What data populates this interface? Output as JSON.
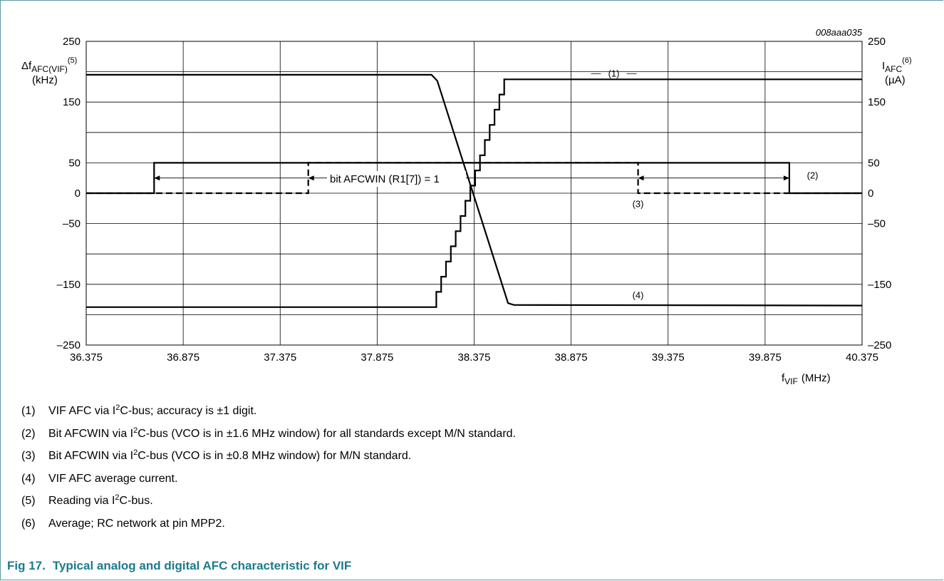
{
  "chart_data": {
    "type": "line",
    "id_label": "008aaa035",
    "x_ticks": [
      "36.375",
      "36.875",
      "37.375",
      "37.875",
      "38.375",
      "38.875",
      "39.375",
      "39.875",
      "40.375"
    ],
    "xlim": [
      36.375,
      40.375
    ],
    "y_ticks_left": [
      "250",
      "150",
      "50",
      "0",
      "–50",
      "–150",
      "–250"
    ],
    "y_tick_values_left": [
      250,
      150,
      50,
      0,
      -50,
      -150,
      -250
    ],
    "y_ticks_right": [
      "250",
      "150",
      "50",
      "0",
      "–50",
      "–150",
      "–250"
    ],
    "ylim": [
      -250,
      250
    ],
    "grid": true,
    "left_axis_label": {
      "symbol": "Δf",
      "subscript": "AFC(VIF)",
      "sup": "(5)",
      "unit": "(kHz)"
    },
    "right_axis_label": {
      "symbol": "I",
      "subscript": "AFC",
      "sup": "(6)",
      "unit": "(µA)"
    },
    "x_axis_label": {
      "symbol": "f",
      "subscript": "VIF",
      "unit": "(MHz)"
    },
    "annotation": "bit AFCWIN (R1[7]) = 1",
    "series": [
      {
        "label": "(1)",
        "style": "solid-staircase",
        "x": [
          36.375,
          38.18,
          38.18,
          38.205,
          38.205,
          38.23,
          38.23,
          38.255,
          38.255,
          38.28,
          38.28,
          38.305,
          38.305,
          38.33,
          38.33,
          38.355,
          38.355,
          38.38,
          38.38,
          38.405,
          38.405,
          38.43,
          38.43,
          38.455,
          38.455,
          38.48,
          38.48,
          38.505,
          38.505,
          38.53,
          38.53,
          38.555,
          38.555,
          38.58,
          38.58,
          40.375
        ],
        "y": [
          -187.5,
          -187.5,
          -162.5,
          -162.5,
          -137.5,
          -137.5,
          -112.5,
          -112.5,
          -87.5,
          -87.5,
          -62.5,
          -62.5,
          -37.5,
          -37.5,
          -12.5,
          -12.5,
          12.5,
          12.5,
          37.5,
          37.5,
          62.5,
          62.5,
          87.5,
          87.5,
          112.5,
          112.5,
          137.5,
          137.5,
          162.5,
          162.5,
          187.5,
          187.5,
          187.5,
          187.5,
          187.5,
          187.5
        ]
      },
      {
        "label": "(2)",
        "style": "solid",
        "x": [
          36.375,
          36.725,
          36.725,
          40.0,
          40.0,
          40.375
        ],
        "y": [
          0,
          0,
          50,
          50,
          0,
          0
        ]
      },
      {
        "label": "(3)",
        "style": "dashed",
        "x": [
          36.375,
          37.52,
          37.52,
          39.22,
          39.22,
          40.375
        ],
        "y": [
          0,
          0,
          50,
          50,
          0,
          0
        ]
      },
      {
        "label": "(4)",
        "style": "solid",
        "x": [
          36.375,
          38.155,
          38.185,
          38.55,
          38.58,
          40.375
        ],
        "y": [
          195,
          195,
          185,
          -181,
          -184,
          -185
        ]
      }
    ],
    "series_label_positions": [
      {
        "label": "(1)",
        "x": 39.095,
        "y": 198
      },
      {
        "label": "(2)",
        "x": 40.12,
        "y": 30
      },
      {
        "label": "(3)",
        "x": 39.22,
        "y": -17
      },
      {
        "label": "(4)",
        "x": 39.22,
        "y": -167
      }
    ]
  },
  "notes": [
    {
      "num": "(1)",
      "pre": "VIF AFC via I",
      "sup": "2",
      "post": "C-bus; accuracy is ±1 digit."
    },
    {
      "num": "(2)",
      "pre": "Bit AFCWIN via I",
      "sup": "2",
      "post": "C-bus (VCO is in ±1.6 MHz window) for all standards except M/N standard."
    },
    {
      "num": "(3)",
      "pre": "Bit AFCWIN via I",
      "sup": "2",
      "post": "C-bus (VCO is in ±0.8 MHz window) for M/N standard."
    },
    {
      "num": "(4)",
      "pre": "VIF AFC average current.",
      "sup": "",
      "post": ""
    },
    {
      "num": "(5)",
      "pre": "Reading via I",
      "sup": "2",
      "post": "C-bus."
    },
    {
      "num": "(6)",
      "pre": "Average; RC network at pin MPP2.",
      "sup": "",
      "post": ""
    }
  ],
  "caption": {
    "fig": "Fig 17.",
    "title": "Typical analog and digital AFC characteristic for VIF"
  },
  "colors": {
    "frame": "#5e99a4",
    "caption": "#1b7b8c",
    "line": "#000000",
    "grid": "#000000"
  }
}
